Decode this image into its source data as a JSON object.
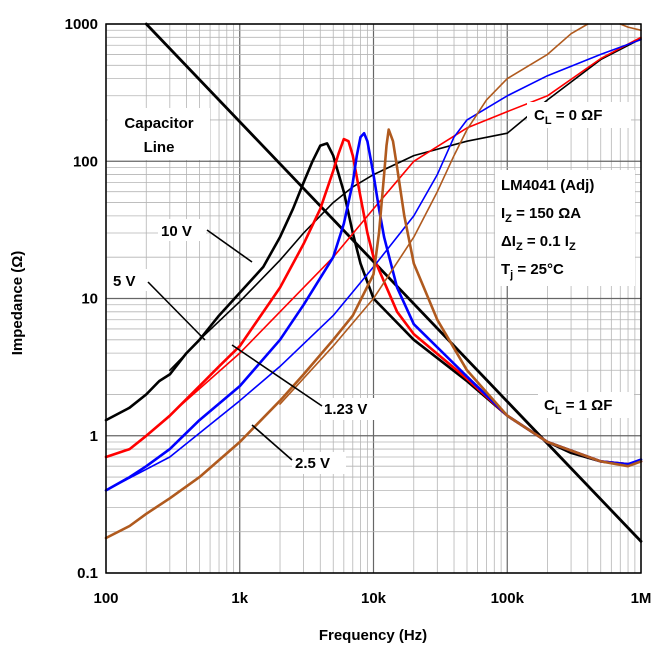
{
  "chart_data": {
    "type": "line",
    "x_scale": "log",
    "y_scale": "log",
    "xlim": [
      100,
      1000000
    ],
    "ylim": [
      0.1,
      1000
    ],
    "grid": true,
    "xlabel": "Frequency (Hz)",
    "ylabel": "Impedance (Ω)",
    "x_ticks": [
      {
        "value": 100,
        "label": "100"
      },
      {
        "value": 1000,
        "label": "1k"
      },
      {
        "value": 10000,
        "label": "10k"
      },
      {
        "value": 100000,
        "label": "100k"
      },
      {
        "value": 1000000,
        "label": "1M"
      }
    ],
    "y_ticks": [
      {
        "value": 0.1,
        "label": "0.1"
      },
      {
        "value": 1,
        "label": "1"
      },
      {
        "value": 10,
        "label": "10"
      },
      {
        "value": 100,
        "label": "100"
      },
      {
        "value": 1000,
        "label": "1000"
      }
    ],
    "annotations": {
      "capacitor_line": [
        "Capacitor",
        "Line"
      ],
      "cl0": {
        "main": "C",
        "sub": "L",
        "rest": " = 0 ΩF"
      },
      "cl1": {
        "main": "C",
        "sub": "L",
        "rest": " = 1 ΩF"
      },
      "device": "LM4041 (Adj)",
      "iz": {
        "main": "I",
        "sub": "Z",
        "rest": " = 150 ΩA"
      },
      "diz": {
        "pre": "ΔI",
        "sub": "Z",
        "mid": " = 0.1 I",
        "sub2": "Z"
      },
      "tj": {
        "main": "T",
        "sub": "j",
        "rest": " = 25°C"
      },
      "v10": "10 V",
      "v5": "5 V",
      "v123": "1.23 V",
      "v25": "2.5 V"
    },
    "series": [
      {
        "label": "10 V",
        "color": "#000000",
        "width": 2.6,
        "points": [
          [
            100,
            1.3
          ],
          [
            150,
            1.6
          ],
          [
            200,
            2.0
          ],
          [
            250,
            2.5
          ],
          [
            300,
            2.8
          ],
          [
            400,
            4.0
          ],
          [
            500,
            5.0
          ],
          [
            700,
            7.5
          ],
          [
            1000,
            11
          ],
          [
            1500,
            17
          ],
          [
            2000,
            28
          ],
          [
            2500,
            45
          ],
          [
            3000,
            70
          ],
          [
            3500,
            100
          ],
          [
            4000,
            130
          ],
          [
            4500,
            135
          ],
          [
            5000,
            110
          ],
          [
            6000,
            60
          ],
          [
            7000,
            30
          ],
          [
            8000,
            18
          ],
          [
            10000,
            10
          ],
          [
            20000,
            5
          ],
          [
            50000,
            2.5
          ],
          [
            100000,
            1.4
          ],
          [
            200000,
            0.9
          ],
          [
            300000,
            0.75
          ],
          [
            500000,
            0.65
          ],
          [
            800000,
            0.62
          ],
          [
            1000000,
            0.65
          ]
        ]
      },
      {
        "label": "",
        "color": "#000000",
        "width": 1.6,
        "points": [
          [
            300,
            3.0
          ],
          [
            500,
            5.0
          ],
          [
            1000,
            9.5
          ],
          [
            2000,
            19
          ],
          [
            3000,
            30
          ],
          [
            5000,
            50
          ],
          [
            7000,
            65
          ],
          [
            10000,
            80
          ],
          [
            20000,
            110
          ],
          [
            50000,
            140
          ],
          [
            100000,
            160
          ],
          [
            200000,
            280
          ],
          [
            500000,
            550
          ],
          [
            1000000,
            780
          ]
        ]
      },
      {
        "label": "5 V",
        "color": "#ff0000",
        "width": 2.6,
        "points": [
          [
            100,
            0.7
          ],
          [
            150,
            0.8
          ],
          [
            200,
            1.0
          ],
          [
            300,
            1.4
          ],
          [
            500,
            2.3
          ],
          [
            700,
            3.2
          ],
          [
            1000,
            4.5
          ],
          [
            2000,
            12
          ],
          [
            3000,
            25
          ],
          [
            4000,
            45
          ],
          [
            5000,
            85
          ],
          [
            5500,
            115
          ],
          [
            6000,
            145
          ],
          [
            6500,
            140
          ],
          [
            7000,
            110
          ],
          [
            8000,
            55
          ],
          [
            9000,
            30
          ],
          [
            10000,
            20
          ],
          [
            15000,
            8
          ],
          [
            20000,
            5.5
          ],
          [
            50000,
            2.6
          ],
          [
            100000,
            1.4
          ],
          [
            200000,
            0.9
          ],
          [
            500000,
            0.65
          ],
          [
            800000,
            0.62
          ],
          [
            1000000,
            0.65
          ]
        ]
      },
      {
        "label": "",
        "color": "#ff0000",
        "width": 1.6,
        "points": [
          [
            200,
            1.0
          ],
          [
            500,
            2.2
          ],
          [
            1000,
            4.0
          ],
          [
            2000,
            8
          ],
          [
            3000,
            12
          ],
          [
            5000,
            20
          ],
          [
            10000,
            45
          ],
          [
            20000,
            100
          ],
          [
            50000,
            175
          ],
          [
            100000,
            230
          ],
          [
            200000,
            300
          ],
          [
            500000,
            560
          ],
          [
            1000000,
            800
          ]
        ]
      },
      {
        "label": "1.23 V",
        "color": "#0000ff",
        "width": 2.6,
        "points": [
          [
            100,
            0.4
          ],
          [
            150,
            0.5
          ],
          [
            200,
            0.6
          ],
          [
            300,
            0.8
          ],
          [
            500,
            1.3
          ],
          [
            1000,
            2.3
          ],
          [
            2000,
            5
          ],
          [
            3000,
            9
          ],
          [
            5000,
            20
          ],
          [
            6000,
            35
          ],
          [
            7000,
            70
          ],
          [
            7500,
            110
          ],
          [
            8000,
            150
          ],
          [
            8500,
            160
          ],
          [
            9000,
            140
          ],
          [
            10000,
            80
          ],
          [
            11000,
            45
          ],
          [
            12000,
            28
          ],
          [
            15000,
            12
          ],
          [
            20000,
            6.5
          ],
          [
            50000,
            2.7
          ],
          [
            100000,
            1.4
          ],
          [
            200000,
            0.9
          ],
          [
            500000,
            0.65
          ],
          [
            800000,
            0.62
          ],
          [
            1000000,
            0.67
          ]
        ]
      },
      {
        "label": "",
        "color": "#0000ff",
        "width": 1.6,
        "points": [
          [
            100,
            0.4
          ],
          [
            300,
            0.7
          ],
          [
            1000,
            1.8
          ],
          [
            2000,
            3.2
          ],
          [
            5000,
            7.5
          ],
          [
            10000,
            17
          ],
          [
            20000,
            40
          ],
          [
            30000,
            80
          ],
          [
            40000,
            150
          ],
          [
            50000,
            200
          ],
          [
            100000,
            300
          ],
          [
            200000,
            420
          ],
          [
            500000,
            600
          ],
          [
            1000000,
            770
          ]
        ]
      },
      {
        "label": "2.5 V",
        "color": "#b05a1e",
        "width": 2.6,
        "points": [
          [
            100,
            0.18
          ],
          [
            150,
            0.22
          ],
          [
            200,
            0.27
          ],
          [
            300,
            0.35
          ],
          [
            500,
            0.5
          ],
          [
            1000,
            0.9
          ],
          [
            2000,
            1.8
          ],
          [
            3000,
            2.8
          ],
          [
            5000,
            5
          ],
          [
            7000,
            7.5
          ],
          [
            10000,
            15
          ],
          [
            11000,
            30
          ],
          [
            12000,
            80
          ],
          [
            12500,
            130
          ],
          [
            13000,
            170
          ],
          [
            14000,
            140
          ],
          [
            15000,
            90
          ],
          [
            17000,
            40
          ],
          [
            20000,
            18
          ],
          [
            30000,
            7
          ],
          [
            50000,
            3
          ],
          [
            100000,
            1.4
          ],
          [
            200000,
            0.9
          ],
          [
            500000,
            0.65
          ],
          [
            800000,
            0.6
          ],
          [
            1000000,
            0.65
          ]
        ]
      },
      {
        "label": "",
        "color": "#b05a1e",
        "width": 1.6,
        "points": [
          [
            2000,
            1.7
          ],
          [
            5000,
            4.5
          ],
          [
            10000,
            10
          ],
          [
            20000,
            28
          ],
          [
            30000,
            60
          ],
          [
            40000,
            110
          ],
          [
            50000,
            170
          ],
          [
            70000,
            280
          ],
          [
            100000,
            400
          ],
          [
            200000,
            600
          ],
          [
            300000,
            850
          ],
          [
            400000,
            1000
          ]
        ]
      },
      {
        "label": "",
        "color": "#b05a1e",
        "width": 1.6,
        "points": [
          [
            700000,
            1000
          ],
          [
            800000,
            950
          ],
          [
            1000000,
            900
          ]
        ]
      }
    ],
    "reference_lines": [
      {
        "label": "Capacitor Line",
        "color": "#000000",
        "width": 2.8,
        "points": [
          [
            200,
            1000
          ],
          [
            1000000,
            0.17
          ]
        ]
      }
    ]
  }
}
